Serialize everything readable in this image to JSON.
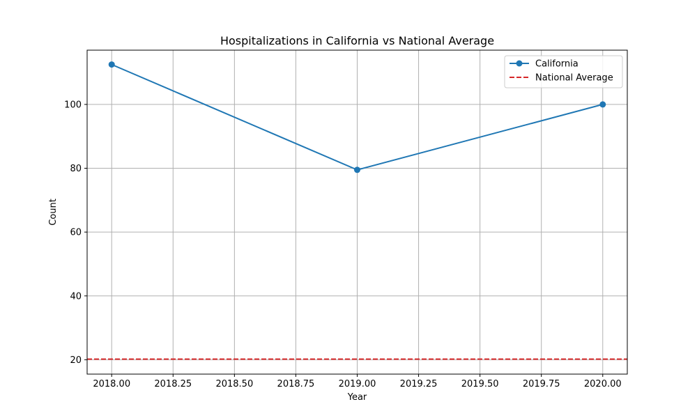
{
  "chart_data": {
    "type": "line",
    "title": "Hospitalizations in California vs National Average",
    "xlabel": "Year",
    "ylabel": "Count",
    "xlim": [
      1.9999,
      2.0
    ],
    "x_ticks": [
      2018.0,
      2018.25,
      2018.5,
      2018.75,
      2019.0,
      2019.25,
      2019.5,
      2019.75,
      2020.0
    ],
    "x_tick_labels": [
      "2018.00",
      "2018.25",
      "2018.50",
      "2018.75",
      "2019.00",
      "2019.25",
      "2019.50",
      "2019.75",
      "2020.00"
    ],
    "x_range": [
      2017.9,
      2020.1
    ],
    "y_range": [
      15.5,
      117
    ],
    "y_ticks": [
      20,
      40,
      60,
      80,
      100
    ],
    "y_tick_labels": [
      "20",
      "40",
      "60",
      "80",
      "100"
    ],
    "grid": true,
    "legend_placement": "top-right",
    "series": [
      {
        "name": "California",
        "style": "line-with-markers",
        "color": "#1f77b4",
        "x": [
          2018.0,
          2019.0,
          2020.0
        ],
        "values": [
          112.5,
          79.5,
          100.0
        ]
      }
    ],
    "reference_lines": [
      {
        "name": "National Average",
        "style": "dashed",
        "color": "#d62728",
        "y": 20.2
      }
    ]
  }
}
